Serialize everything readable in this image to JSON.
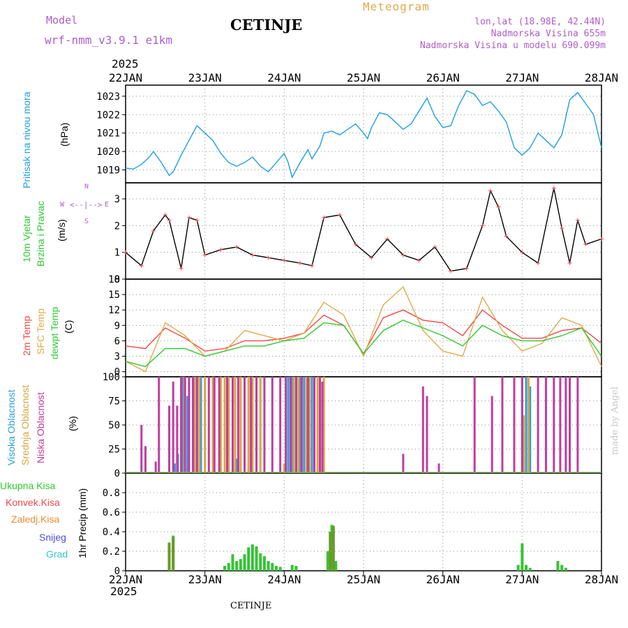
{
  "header": {
    "model_label": "Model",
    "model_name": "wrf-nmm_v3.9.1  e1km",
    "title": "CETINJE",
    "meteogram": "Meteogram",
    "coords": "lon,lat (18.98E, 42.44N)",
    "altitude": "Nadmorska Visina 655m",
    "model_altitude": "Nadmorska Visina u modelu 690.099m",
    "year_top": "2025",
    "year_bottom": "2025",
    "footer": "CETINJE",
    "credit": "made by Angel"
  },
  "colors": {
    "pressure": "#1e9fe0",
    "temp2m": "#f04848",
    "sfc": "#e0a94a",
    "dew": "#30c830",
    "cloud_high": "#2a9fe0",
    "cloud_mid": "#d9a640",
    "cloud_low": "#c03ca0",
    "precip": "#34c434",
    "convective": "#6a9a2a",
    "label_purple": "#b05ccc"
  },
  "panels": {
    "pressure": {
      "label1": "Pritisak na nivou mora",
      "label2": "(hPa)"
    },
    "wind": {
      "label1": "10m Vjetar",
      "label2": "Brzina i Pravac",
      "label3": "(m/s)",
      "compass_n": "N",
      "compass_s": "S",
      "compass_w": "W",
      "compass_e": "E"
    },
    "temp": {
      "label1": "2m Temp",
      "label2": "SFC Temp",
      "label3": "dewpt Temp",
      "label4": "(C)"
    },
    "cloud": {
      "label1": "Visoka Oblacnost",
      "label2": "Srednja Oblacnost",
      "label3": "Niska Oblacnost",
      "label4": "(%)"
    },
    "precip": {
      "label1": "1hr Precip (mm)",
      "legend": [
        "Ukupna Kisa",
        "Konvek.Kisa",
        "Zaledj.Kisa",
        "Snijeg",
        "Grad"
      ]
    }
  },
  "chart_data": [
    {
      "type": "line",
      "title": "Pritisak na nivou mora",
      "ylabel": "(hPa)",
      "x_unit": "days from 22JAN 00UTC",
      "categories": [
        "22JAN",
        "23JAN",
        "24JAN",
        "25JAN",
        "26JAN",
        "27JAN",
        "28JAN"
      ],
      "ylim": [
        1018.3,
        1023.6
      ],
      "yticks": [
        1019,
        1020,
        1021,
        1022,
        1023
      ],
      "x": [
        0,
        0.1,
        0.2,
        0.3,
        0.35,
        0.45,
        0.55,
        0.6,
        0.7,
        0.8,
        0.9,
        1.0,
        1.1,
        1.2,
        1.3,
        1.4,
        1.5,
        1.6,
        1.7,
        1.8,
        1.9,
        2.0,
        2.05,
        2.1,
        2.2,
        2.3,
        2.35,
        2.45,
        2.5,
        2.6,
        2.7,
        2.8,
        2.9,
        3.0,
        3.05,
        3.1,
        3.2,
        3.3,
        3.4,
        3.5,
        3.6,
        3.7,
        3.8,
        3.9,
        4.0,
        4.1,
        4.2,
        4.3,
        4.4,
        4.5,
        4.6,
        4.7,
        4.8,
        4.9,
        5.0,
        5.1,
        5.2,
        5.3,
        5.4,
        5.5,
        5.6,
        5.7,
        5.8,
        5.9,
        6.0
      ],
      "values": [
        1019.1,
        1019.05,
        1019.3,
        1019.7,
        1020.0,
        1019.4,
        1018.7,
        1018.9,
        1019.8,
        1020.6,
        1021.4,
        1021.0,
        1020.6,
        1019.9,
        1019.4,
        1019.2,
        1019.4,
        1019.7,
        1019.2,
        1018.9,
        1019.4,
        1019.9,
        1019.4,
        1018.6,
        1019.4,
        1020.1,
        1019.6,
        1020.3,
        1021.0,
        1021.1,
        1020.9,
        1021.2,
        1021.5,
        1021.0,
        1020.7,
        1021.3,
        1022.1,
        1022.0,
        1021.6,
        1021.2,
        1021.5,
        1022.2,
        1022.9,
        1021.9,
        1021.3,
        1021.4,
        1022.5,
        1023.3,
        1023.1,
        1022.5,
        1022.7,
        1022.2,
        1021.6,
        1020.2,
        1019.8,
        1020.2,
        1021.0,
        1020.6,
        1020.2,
        1020.9,
        1022.8,
        1023.2,
        1022.6,
        1022.0,
        1020.2
      ]
    },
    {
      "type": "line",
      "title": "10m Vjetar Brzina i Pravac",
      "ylabel": "(m/s)",
      "categories": [
        "22JAN",
        "23JAN",
        "24JAN",
        "25JAN",
        "26JAN",
        "27JAN",
        "28JAN"
      ],
      "ylim": [
        0,
        3.6
      ],
      "yticks": [
        0,
        1,
        2,
        3
      ],
      "x": [
        0,
        0.2,
        0.35,
        0.5,
        0.55,
        0.7,
        0.8,
        0.9,
        1.0,
        1.2,
        1.4,
        1.6,
        1.8,
        2.0,
        2.2,
        2.35,
        2.5,
        2.7,
        2.9,
        3.1,
        3.3,
        3.5,
        3.7,
        3.9,
        4.1,
        4.3,
        4.5,
        4.6,
        4.7,
        4.8,
        5.0,
        5.2,
        5.4,
        5.5,
        5.6,
        5.7,
        5.8,
        6.0
      ],
      "values": [
        1.0,
        0.5,
        1.8,
        2.4,
        2.2,
        0.4,
        2.3,
        2.2,
        0.9,
        1.1,
        1.2,
        0.9,
        0.8,
        0.7,
        0.6,
        0.5,
        2.3,
        2.4,
        1.3,
        0.8,
        1.5,
        0.9,
        0.7,
        1.2,
        0.3,
        0.4,
        2.0,
        3.3,
        2.7,
        1.6,
        1.0,
        0.6,
        3.4,
        1.9,
        0.6,
        2.2,
        1.3,
        1.5
      ]
    },
    {
      "type": "line",
      "title": "2m Temp / SFC Temp / dewpt Temp",
      "ylabel": "(C)",
      "categories": [
        "22JAN",
        "23JAN",
        "24JAN",
        "25JAN",
        "26JAN",
        "27JAN",
        "28JAN"
      ],
      "ylim": [
        -1,
        18
      ],
      "yticks": [
        0,
        3,
        6,
        9,
        12,
        15,
        18
      ],
      "x": [
        0,
        0.25,
        0.5,
        0.75,
        1.0,
        1.25,
        1.5,
        1.75,
        2.0,
        2.25,
        2.5,
        2.75,
        3.0,
        3.25,
        3.5,
        3.75,
        4.0,
        4.25,
        4.5,
        4.75,
        5.0,
        5.25,
        5.5,
        5.75,
        6.0
      ],
      "series": [
        {
          "name": "2m Temp",
          "values": [
            5,
            4.5,
            8.5,
            6.5,
            4,
            4.5,
            6,
            6,
            6.5,
            7.5,
            11,
            9,
            3.5,
            10.5,
            12,
            10,
            9.5,
            7,
            12,
            9,
            6.5,
            6.5,
            8,
            8.5,
            5.5
          ]
        },
        {
          "name": "SFC Temp",
          "values": [
            2,
            0,
            9.5,
            7,
            3,
            4,
            8,
            7,
            6,
            7.5,
            13.5,
            11,
            3,
            13,
            16.5,
            8,
            4,
            3,
            14.5,
            8,
            4,
            5.5,
            10.5,
            9,
            1
          ]
        },
        {
          "name": "dewpt Temp",
          "values": [
            2,
            1,
            4.5,
            4.5,
            3,
            4,
            5,
            5,
            6,
            6.5,
            9.5,
            9,
            3.5,
            8,
            10,
            8.5,
            7,
            5,
            9,
            7,
            6,
            6,
            7,
            8.5,
            3
          ]
        }
      ]
    },
    {
      "type": "bar",
      "title": "Visoka / Srednja / Niska Oblacnost",
      "ylabel": "(%)",
      "categories": [
        "22JAN",
        "23JAN",
        "24JAN",
        "25JAN",
        "26JAN",
        "27JAN",
        "28JAN"
      ],
      "ylim": [
        0,
        100
      ],
      "yticks": [
        0,
        25,
        50,
        75,
        100
      ],
      "series": [
        {
          "name": "Visoka Oblacnost",
          "x": [
            0.62,
            0.66,
            0.72,
            0.78,
            0.85,
            0.9,
            0.95,
            1.35,
            1.4,
            2.05,
            2.1,
            2.15,
            2.2,
            2.25,
            2.3,
            2.35,
            5.0,
            5.05,
            5.1
          ],
          "values": [
            10,
            20,
            100,
            80,
            100,
            100,
            100,
            20,
            15,
            100,
            100,
            100,
            100,
            100,
            100,
            100,
            100,
            100,
            90
          ]
        },
        {
          "name": "Srednja Oblacnost",
          "x": [
            0.74,
            0.8,
            0.87,
            0.93,
            1.0,
            1.1,
            1.2,
            1.25,
            1.3,
            1.38,
            1.45,
            1.5,
            1.55,
            1.6,
            1.65,
            1.7,
            2.0,
            2.08,
            2.12,
            2.18,
            2.22,
            2.28,
            2.32,
            2.38,
            2.42,
            2.45,
            2.5,
            5.02,
            5.08
          ],
          "values": [
            100,
            100,
            100,
            100,
            100,
            100,
            100,
            100,
            100,
            100,
            100,
            100,
            100,
            100,
            100,
            100,
            10,
            100,
            100,
            100,
            100,
            100,
            100,
            100,
            100,
            100,
            100,
            60,
            100
          ]
        },
        {
          "name": "Niska Oblacnost",
          "x": [
            0.2,
            0.25,
            0.38,
            0.42,
            0.55,
            0.6,
            0.65,
            0.7,
            0.75,
            0.8,
            0.85,
            0.9,
            1.05,
            1.12,
            1.18,
            1.28,
            1.35,
            1.42,
            1.5,
            1.58,
            1.65,
            1.75,
            1.85,
            1.95,
            2.02,
            2.08,
            2.15,
            2.22,
            2.3,
            2.38,
            2.45,
            2.48,
            3.5,
            3.75,
            3.8,
            3.95,
            4.4,
            4.62,
            4.75,
            4.9,
            5.0,
            5.2,
            5.3,
            5.4,
            5.48,
            5.55,
            5.6,
            5.7
          ],
          "values": [
            50,
            28,
            12,
            100,
            70,
            95,
            70,
            100,
            100,
            100,
            100,
            100,
            100,
            100,
            100,
            100,
            100,
            100,
            100,
            100,
            100,
            100,
            100,
            100,
            100,
            100,
            100,
            100,
            100,
            100,
            100,
            95,
            20,
            90,
            80,
            10,
            100,
            80,
            100,
            100,
            100,
            100,
            100,
            100,
            100,
            100,
            100,
            100
          ]
        }
      ]
    },
    {
      "type": "bar",
      "title": "1hr Precip (mm)",
      "ylabel": "1hr Precip (mm)",
      "categories": [
        "22JAN",
        "23JAN",
        "24JAN",
        "25JAN",
        "26JAN",
        "27JAN",
        "28JAN"
      ],
      "ylim": [
        0,
        1.0
      ],
      "yticks": [
        0,
        0.2,
        0.4,
        0.6,
        0.8
      ],
      "series": [
        {
          "name": "Ukupna Kisa",
          "x": [
            0.55,
            0.6,
            1.25,
            1.3,
            1.35,
            1.4,
            1.45,
            1.5,
            1.55,
            1.6,
            1.65,
            1.7,
            1.75,
            1.8,
            1.85,
            1.9,
            1.95,
            2.1,
            2.15,
            2.55,
            2.6,
            2.65,
            4.95,
            5.0,
            5.05,
            5.1,
            5.45,
            5.5,
            5.55
          ],
          "values": [
            0.29,
            0.36,
            0.05,
            0.08,
            0.17,
            0.1,
            0.12,
            0.17,
            0.24,
            0.27,
            0.25,
            0.18,
            0.15,
            0.1,
            0.08,
            0.05,
            0.04,
            0.06,
            0.05,
            0.2,
            0.47,
            0.1,
            0.06,
            0.28,
            0.06,
            0.03,
            0.1,
            0.06,
            0.03
          ]
        },
        {
          "name": "Konvek.Kisa",
          "x": [
            0.55,
            0.6,
            2.58,
            2.62
          ],
          "values": [
            0.28,
            0.34,
            0.4,
            0.46
          ]
        }
      ]
    }
  ]
}
